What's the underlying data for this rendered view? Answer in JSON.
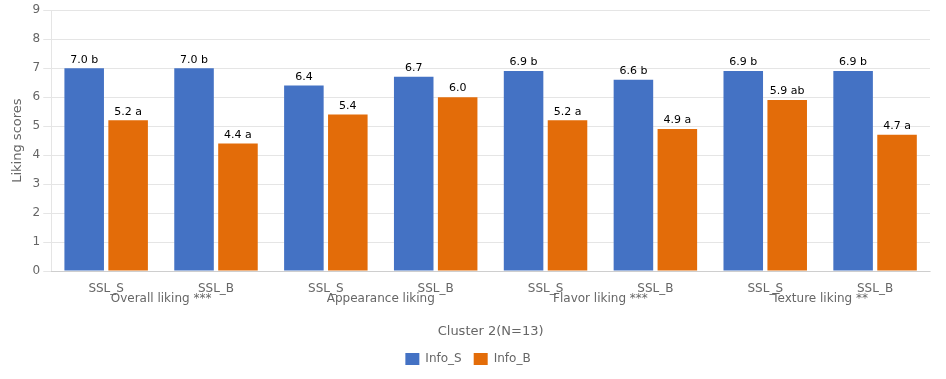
{
  "chart_data": {
    "type": "bar",
    "categories": [
      "SSL_S",
      "SSL_B",
      "SSL_S",
      "SSL_B",
      "SSL_S",
      "SSL_B",
      "SSL_S",
      "SSL_B"
    ],
    "groups": [
      "Overall liking ***",
      "Appearance liking",
      "Flavor liking ***",
      "Texture liking **"
    ],
    "series": [
      {
        "name": "Info_S",
        "color": "#4472C4",
        "values": [
          7.0,
          7.0,
          6.4,
          6.7,
          6.9,
          6.6,
          6.9,
          6.9
        ],
        "value_labels": [
          "7.0 b",
          "7.0 b",
          "6.4",
          "6.7",
          "6.9 b",
          "6.6 b",
          "6.9 b",
          "6.9 b"
        ]
      },
      {
        "name": "Info_B",
        "color": "#E36C09",
        "values": [
          5.2,
          4.4,
          5.4,
          6.0,
          5.2,
          4.9,
          5.9,
          4.7
        ],
        "value_labels": [
          "5.2 a",
          "4.4 a",
          "5.4",
          "6.0",
          "5.2 a",
          "4.9 a",
          "5.9 ab",
          "4.7 a"
        ]
      }
    ],
    "ylabel": "Liking scores",
    "xlabel": "Cluster 2(N=13)",
    "ylim": [
      0,
      9
    ],
    "yticks": [
      0,
      1,
      2,
      3,
      4,
      5,
      6,
      7,
      8,
      9
    ],
    "grid": true,
    "legend": "bottom",
    "data_labels": true
  }
}
